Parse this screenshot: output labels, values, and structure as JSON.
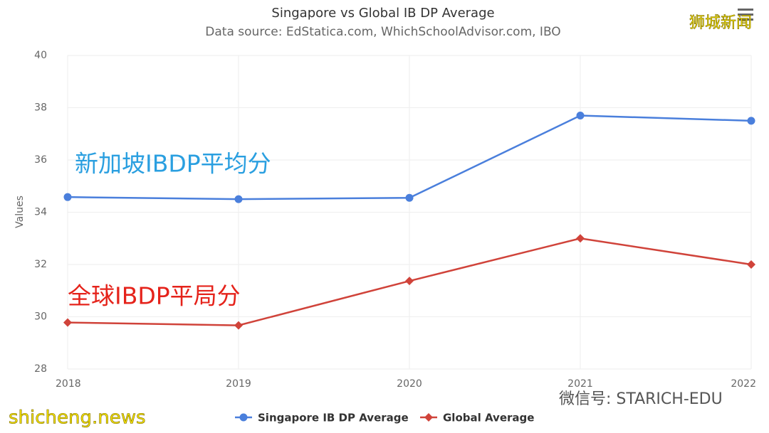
{
  "chart_data": {
    "type": "line",
    "title": "Singapore vs Global IB DP Average",
    "subtitle": "Data source: EdStatica.com, WhichSchoolAdvisor.com, IBO",
    "y_label": "Values",
    "categories": [
      "2018",
      "2019",
      "2020",
      "2021",
      "2022"
    ],
    "series": [
      {
        "name": "Singapore IB DP Average",
        "color": "#4a7fdc",
        "marker": "circle",
        "values": [
          34.58,
          34.5,
          34.55,
          37.7,
          37.5
        ]
      },
      {
        "name": "Global Average",
        "color": "#d0433a",
        "marker": "diamond",
        "values": [
          29.78,
          29.67,
          31.37,
          33,
          32
        ]
      }
    ],
    "ylim": [
      28,
      40
    ],
    "yticks": [
      28,
      30,
      32,
      34,
      36,
      38,
      40
    ],
    "grid": true,
    "legend": "bottom",
    "annotations": [
      {
        "text": "新加坡IBDP平均分",
        "color": "#2a9fe0"
      },
      {
        "text": "全球IBDP平局分",
        "color": "#e5231b"
      }
    ]
  },
  "watermarks": {
    "top_right": "狮城新闻",
    "bottom_left": "shicheng.news",
    "bottom_right": "微信号: STARICH-EDU"
  }
}
